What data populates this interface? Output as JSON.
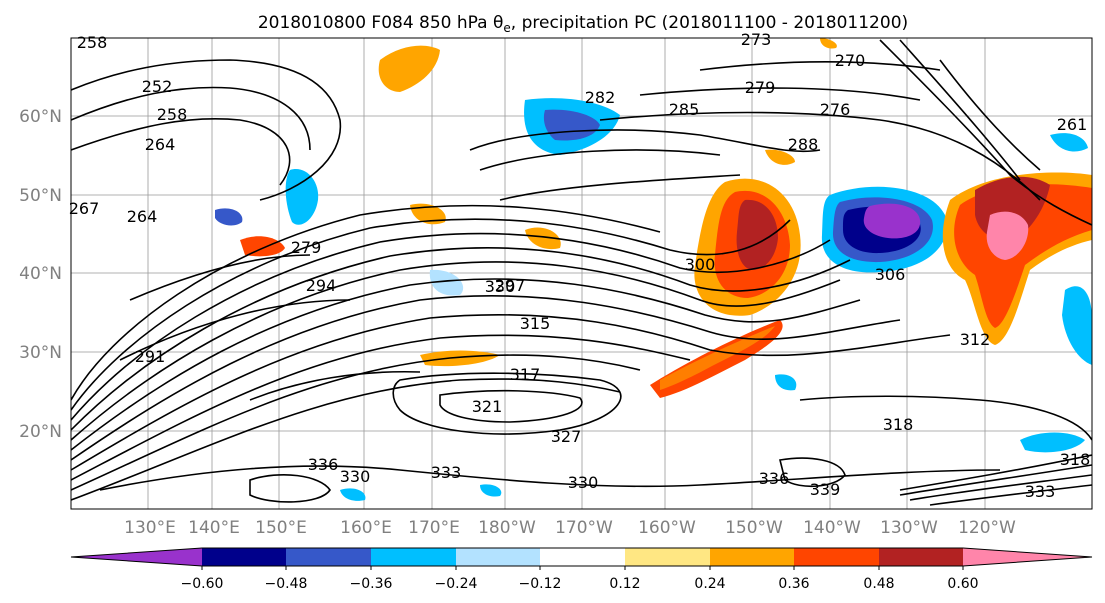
{
  "title_text": "2018010800 F084 850 hPa θ",
  "title_sub": "e",
  "title_suffix": ", precipitation PC (2018011100 - 2018011200)",
  "map": {
    "lat_labels": [
      "60°N",
      "50°N",
      "40°N",
      "30°N",
      "20°N"
    ],
    "lon_labels": [
      "130°E",
      "140°E",
      "150°E",
      "160°E",
      "170°E",
      "180°W",
      "170°W",
      "160°W",
      "150°W",
      "140°W",
      "130°W",
      "120°W"
    ],
    "contour_labels": [
      "258",
      "252",
      "258",
      "264",
      "264",
      "267",
      "279",
      "294",
      "291",
      "297",
      "315",
      "317",
      "321",
      "327",
      "330",
      "333",
      "336",
      "330",
      "282",
      "285",
      "288",
      "273",
      "270",
      "279",
      "276",
      "300",
      "306",
      "312",
      "318",
      "318",
      "333",
      "339",
      "336",
      "330",
      "261"
    ]
  },
  "colorbar": {
    "colors": [
      "#9932CC",
      "#00008B",
      "#3658C9",
      "#00BFFF",
      "#B3E2FF",
      "#FFFFFF",
      "#FFE783",
      "#FFA500",
      "#FF4500",
      "#B22222",
      "#FF85AA"
    ],
    "tick_labels": [
      "−0.60",
      "−0.48",
      "−0.36",
      "−0.24",
      "−0.12",
      "0.12",
      "0.24",
      "0.36",
      "0.48",
      "0.60"
    ]
  }
}
